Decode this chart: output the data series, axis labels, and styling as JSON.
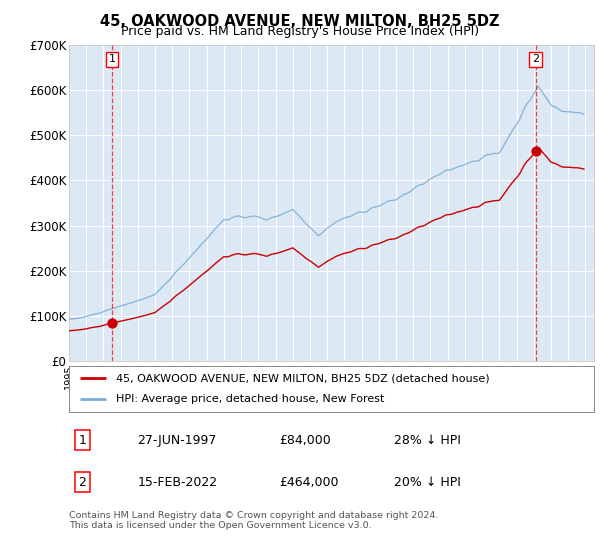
{
  "title": "45, OAKWOOD AVENUE, NEW MILTON, BH25 5DZ",
  "subtitle": "Price paid vs. HM Land Registry's House Price Index (HPI)",
  "background_color": "#dce9f5",
  "grid_color": "#ffffff",
  "sale_color": "#cc0000",
  "hpi_color": "#7aadd4",
  "sale1_year": 1997.49,
  "sale1_price": 84000,
  "sale2_year": 2022.12,
  "sale2_price": 464000,
  "ylim": [
    0,
    700000
  ],
  "ytick_vals": [
    0,
    100000,
    200000,
    300000,
    400000,
    500000,
    600000,
    700000
  ],
  "ytick_labels": [
    "£0",
    "£100K",
    "£200K",
    "£300K",
    "£400K",
    "£500K",
    "£600K",
    "£700K"
  ],
  "legend_line1": "45, OAKWOOD AVENUE, NEW MILTON, BH25 5DZ (detached house)",
  "legend_line2": "HPI: Average price, detached house, New Forest",
  "table_row1": [
    "1",
    "27-JUN-1997",
    "£84,000",
    "28% ↓ HPI"
  ],
  "table_row2": [
    "2",
    "15-FEB-2022",
    "£464,000",
    "20% ↓ HPI"
  ],
  "footer": "Contains HM Land Registry data © Crown copyright and database right 2024.\nThis data is licensed under the Open Government Licence v3.0."
}
